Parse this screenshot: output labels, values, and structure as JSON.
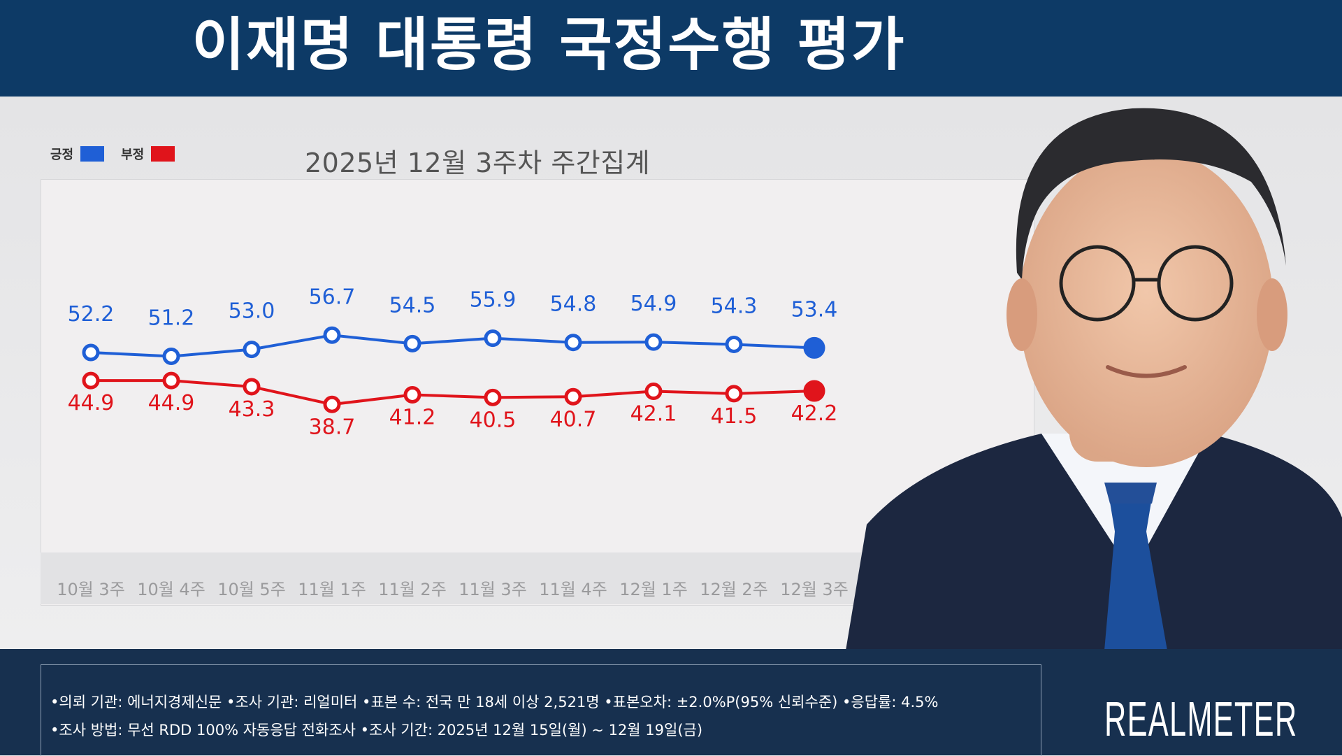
{
  "header": {
    "title": "이재명 대통령 국정수행 평가"
  },
  "brand": "REALMETER",
  "footer": {
    "line1": "•의뢰 기관: 에너지경제신문  •조사 기관: 리얼미터  •표본 수: 전국 만 18세 이상 2,521명  •표본오차: ±2.0%P(95% 신뢰수준)  •응답률: 4.5%",
    "line2": "•조사 방법: 무선 RDD 100% 자동응답 전화조사  •조사 기간: 2025년 12월 15일(월) ~ 12월 19일(금)"
  },
  "colors": {
    "header_bg": "#0d3a66",
    "footer_bg": "#17304f",
    "positive": "#1f5fd6",
    "negative": "#e0141b"
  },
  "chart_data": {
    "type": "line",
    "title": "",
    "subtitle": "2025년 12월 3주차 주간집계",
    "xlabel": "",
    "ylabel": "",
    "categories": [
      "10월 3주",
      "10월 4주",
      "10월 5주",
      "11월 1주",
      "11월 2주",
      "11월 3주",
      "11월 4주",
      "12월 1주",
      "12월 2주",
      "12월 3주"
    ],
    "series": [
      {
        "name": "긍정",
        "color": "#1f5fd6",
        "values": [
          52.2,
          51.2,
          53.0,
          56.7,
          54.5,
          55.9,
          54.8,
          54.9,
          54.3,
          53.4
        ],
        "labels": [
          "52.2",
          "51.2",
          "53.0",
          "56.7",
          "54.5",
          "55.9",
          "54.8",
          "54.9",
          "54.3",
          "53.4"
        ]
      },
      {
        "name": "부정",
        "color": "#e0141b",
        "values": [
          44.9,
          44.9,
          43.3,
          38.7,
          41.2,
          40.5,
          40.7,
          42.1,
          41.5,
          42.2
        ],
        "labels": [
          "44.9",
          "44.9",
          "43.3",
          "38.7",
          "41.2",
          "40.5",
          "40.7",
          "42.1",
          "41.5",
          "42.2"
        ]
      }
    ],
    "legend_position": "top-left",
    "grid": false,
    "highlight_last_point": true
  }
}
